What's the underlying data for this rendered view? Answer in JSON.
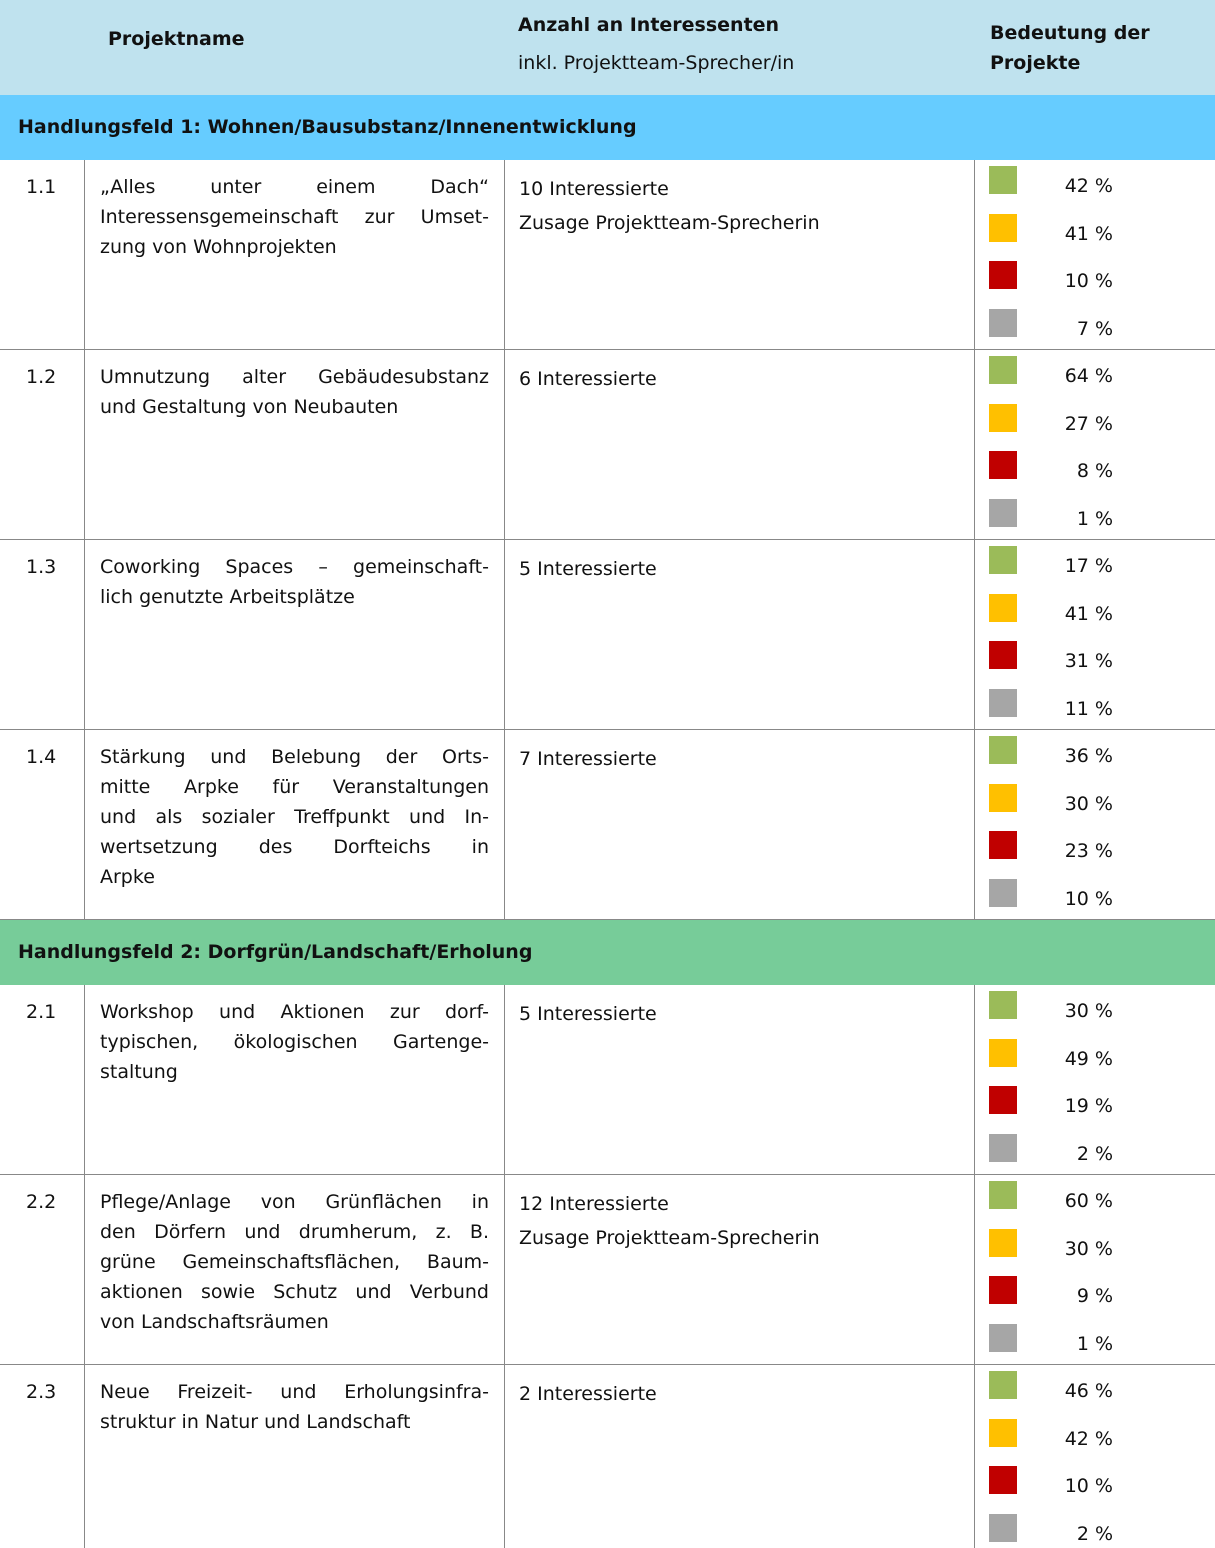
{
  "header": {
    "columns": [
      "Projektname",
      "Anzahl an Interessenten",
      "Bedeutung der Projekte"
    ],
    "subtitle": "inkl. Projektteam-Sprecher/in"
  },
  "sections": [
    {
      "title": "Handlungsfeld 1: Wohnen/Bausubstanz/Innenentwicklung",
      "rows": [
        {
          "id": "1.1",
          "name": [
            "„Alles unter einem Dach“",
            "Interessensgemeinschaft zur Umset-",
            "zung von Wohnprojekten"
          ],
          "interest": [
            "10 Interessierte",
            "Zusage Projektteam-Sprecherin"
          ],
          "shares": [
            "42 %",
            "41 %",
            "10 %",
            "7 %"
          ]
        },
        {
          "id": "1.2",
          "name": [
            "Umnutzung alter Gebäudesubstanz",
            "und Gestaltung von Neubauten"
          ],
          "interest": [
            "6 Interessierte"
          ],
          "shares": [
            "64 %",
            "27 %",
            "8 %",
            "1 %"
          ]
        },
        {
          "id": "1.3",
          "name": [
            "Coworking Spaces – gemeinschaft-",
            "lich genutzte Arbeitsplätze"
          ],
          "interest": [
            "5 Interessierte"
          ],
          "shares": [
            "17 %",
            "41 %",
            "31 %",
            "11 %"
          ]
        },
        {
          "id": "1.4",
          "name": [
            "Stärkung und Belebung der Orts-",
            "mitte Arpke für Veranstaltungen",
            "und als sozialer Treffpunkt und In-",
            "wertsetzung des Dorfteichs in",
            "Arpke"
          ],
          "interest": [
            "7 Interessierte"
          ],
          "shares": [
            "36 %",
            "30 %",
            "23 %",
            "10 %"
          ]
        }
      ]
    },
    {
      "title": "Handlungsfeld 2: Dorfgrün/Landschaft/Erholung",
      "rows": [
        {
          "id": "2.1",
          "name": [
            "Workshop und Aktionen zur dorf-",
            "typischen, ökologischen Gartenge-",
            "staltung"
          ],
          "interest": [
            "5 Interessierte"
          ],
          "shares": [
            "30 %",
            "49 %",
            "19 %",
            "2 %"
          ]
        },
        {
          "id": "2.2",
          "name": [
            "Pflege/Anlage von Grünflächen in",
            "den Dörfern und drumherum, z. B.",
            "grüne Gemeinschaftsflächen, Baum-",
            "aktionen sowie Schutz und Verbund",
            "von Landschaftsräumen"
          ],
          "interest": [
            "12 Interessierte",
            "Zusage Projektteam-Sprecherin"
          ],
          "shares": [
            "60 %",
            "30 %",
            "9 %",
            "1 %"
          ]
        },
        {
          "id": "2.3",
          "name": [
            "Neue Freizeit- und Erholungsinfra-",
            "struktur in Natur und Landschaft"
          ],
          "interest": [
            "2 Interessierte"
          ],
          "shares": [
            "46 %",
            "42 %",
            "10 %",
            "2 %"
          ]
        }
      ]
    }
  ]
}
